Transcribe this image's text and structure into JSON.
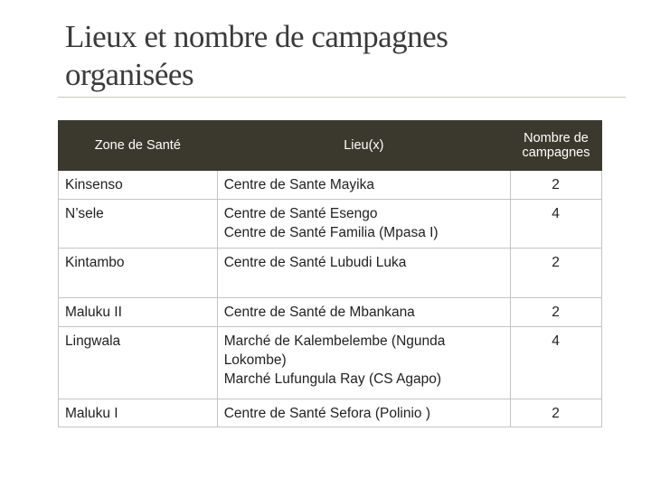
{
  "header": {
    "title": "Lieux et nombre de campagnes organisées"
  },
  "table": {
    "headers": [
      "Zone de Santé",
      "Lieu(x)",
      "Nombre de campagnes"
    ],
    "rows": [
      [
        "Kinsenso",
        [
          "Centre de Sante Mayika"
        ],
        2
      ],
      [
        "N’sele",
        [
          "Centre de Santé Esengo",
          "Centre de Santé Familia (Mpasa I)"
        ],
        4
      ],
      [
        "Kintambo",
        [
          "Centre de Santé Lubudi Luka"
        ],
        2
      ],
      [
        "Maluku II",
        [
          "Centre de Santé de Mbankana"
        ],
        2
      ],
      [
        "Lingwala",
        [
          "Marché de Kalembelembe (Ngunda Lokombe)",
          "Marché Lufungula Ray (CS Agapo)"
        ],
        4
      ],
      [
        "Maluku I",
        [
          "Centre de Santé Sefora (Polinio )"
        ],
        2
      ]
    ]
  }
}
